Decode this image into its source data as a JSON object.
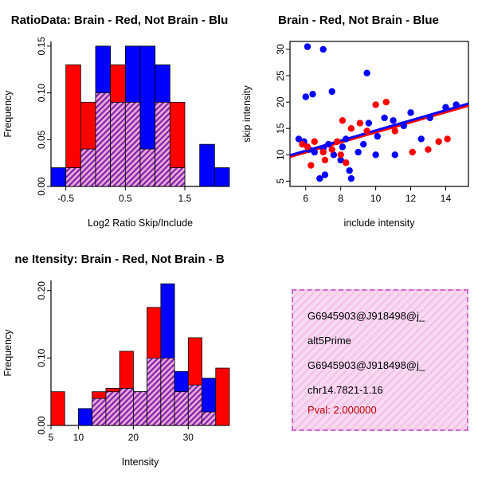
{
  "colors": {
    "red": "#ff0000",
    "blue": "#0000ff",
    "overlap_bg": "#e6a3dc",
    "overlap_line": "#7a1fa2",
    "info_bg": "#f8d9f1",
    "info_hatch": "#f2c0e8",
    "info_border": "#d06ac8",
    "pval": "#c00000"
  },
  "chart_data": [
    {
      "type": "bar",
      "title": "RatioData: Brain - Red, Not Brain - Blu",
      "xlabel": "Log2 Ratio Skip/Include",
      "ylabel": "Frequency",
      "xlim": [
        -0.75,
        2.25
      ],
      "ylim": [
        0,
        0.155
      ],
      "xticks": [
        -0.5,
        0.5,
        1.5
      ],
      "xtick_labels": [
        "-0.5",
        "0.5",
        "1.5"
      ],
      "yticks": [
        0,
        0.05,
        0.1,
        0.15
      ],
      "ytick_labels": [
        "0.00",
        "0.05",
        "0.10",
        "0.15"
      ],
      "bin_start": -0.75,
      "bin_width": 0.25,
      "series": [
        {
          "name": "red",
          "values": [
            0,
            0.13,
            0.09,
            0.1,
            0.13,
            0.09,
            0.04,
            0.09,
            0.09,
            0,
            0,
            0
          ]
        },
        {
          "name": "blue",
          "values": [
            0.02,
            0.02,
            0.04,
            0.15,
            0.09,
            0.15,
            0.15,
            0.13,
            0.02,
            0,
            0.045,
            0.02
          ]
        }
      ]
    },
    {
      "type": "scatter",
      "title": "Brain - Red, Not Brain - Blue",
      "xlabel": "include intensity",
      "ylabel": "skip intensity",
      "xlim": [
        5.1,
        15.3
      ],
      "ylim": [
        4,
        31.5
      ],
      "xticks": [
        6,
        8,
        10,
        12,
        14
      ],
      "xtick_labels": [
        "6",
        "8",
        "10",
        "12",
        "14"
      ],
      "yticks": [
        5,
        10,
        15,
        20,
        25,
        30
      ],
      "ytick_labels": [
        "5",
        "10",
        "15",
        "20",
        "25",
        "30"
      ],
      "series": [
        {
          "name": "blue",
          "points": [
            [
              5.6,
              13
            ],
            [
              5.9,
              12.5
            ],
            [
              6.0,
              21
            ],
            [
              6.4,
              21.5
            ],
            [
              6.1,
              30.5
            ],
            [
              7.0,
              30
            ],
            [
              6.2,
              11
            ],
            [
              6.5,
              10.5
            ],
            [
              6.8,
              5.5
            ],
            [
              7.0,
              11.2
            ],
            [
              7.1,
              6.2
            ],
            [
              7.3,
              12
            ],
            [
              7.5,
              22
            ],
            [
              7.6,
              10
            ],
            [
              8.0,
              9
            ],
            [
              8.1,
              11.5
            ],
            [
              8.3,
              13
            ],
            [
              8.5,
              7
            ],
            [
              8.6,
              5.5
            ],
            [
              9.0,
              10.5
            ],
            [
              9.3,
              12
            ],
            [
              9.5,
              25.5
            ],
            [
              9.6,
              16
            ],
            [
              10.0,
              10
            ],
            [
              10.1,
              13.5
            ],
            [
              10.5,
              17
            ],
            [
              11.0,
              16.5
            ],
            [
              11.1,
              10
            ],
            [
              11.6,
              15.5
            ],
            [
              12.0,
              18
            ],
            [
              12.6,
              13
            ],
            [
              13.1,
              17
            ],
            [
              14.0,
              19
            ],
            [
              14.6,
              19.5
            ]
          ]
        },
        {
          "name": "red",
          "points": [
            [
              5.8,
              12
            ],
            [
              6.1,
              11.5
            ],
            [
              6.5,
              12.5
            ],
            [
              6.3,
              8
            ],
            [
              7.0,
              10.5
            ],
            [
              7.1,
              9
            ],
            [
              7.5,
              11
            ],
            [
              7.8,
              12.5
            ],
            [
              8.0,
              10
            ],
            [
              8.1,
              16.5
            ],
            [
              8.3,
              8.5
            ],
            [
              8.6,
              15
            ],
            [
              9.1,
              16
            ],
            [
              9.5,
              14.5
            ],
            [
              10.0,
              19.5
            ],
            [
              10.6,
              20
            ],
            [
              11.1,
              14.5
            ],
            [
              12.1,
              10.5
            ],
            [
              13.0,
              11
            ],
            [
              13.6,
              12.5
            ],
            [
              14.1,
              13
            ]
          ]
        }
      ],
      "fit_lines": [
        {
          "name": "red",
          "x": [
            5.1,
            15.3
          ],
          "y": [
            9.6,
            19.3
          ]
        },
        {
          "name": "blue",
          "x": [
            5.1,
            15.3
          ],
          "y": [
            9.9,
            19.7
          ]
        }
      ]
    },
    {
      "type": "bar",
      "title": "ne Itensity: Brain - Red, Not Brain - B",
      "xlabel": "Intensity",
      "ylabel": "Frequency",
      "xlim": [
        5,
        37.5
      ],
      "ylim": [
        0,
        0.215
      ],
      "xticks": [
        5,
        10,
        20,
        30
      ],
      "xtick_labels": [
        "5",
        "10",
        "20",
        "30"
      ],
      "yticks": [
        0,
        0.1,
        0.2
      ],
      "ytick_labels": [
        "0.00",
        "0.10",
        "0.20"
      ],
      "bin_start": 5,
      "bin_width": 2.5,
      "series": [
        {
          "name": "red",
          "values": [
            0.05,
            0,
            0,
            0.05,
            0.055,
            0.11,
            0.05,
            0.175,
            0.1,
            0.05,
            0.13,
            0.02,
            0.085
          ]
        },
        {
          "name": "blue",
          "values": [
            0,
            0,
            0.025,
            0.04,
            0.05,
            0.055,
            0.05,
            0.1,
            0.21,
            0.08,
            0.06,
            0.07,
            0
          ]
        }
      ]
    }
  ],
  "info_box": {
    "lines": [
      {
        "text": "G6945903@J918498@j_"
      },
      {
        "text": "alt5Prime"
      },
      {
        "text": "G6945903@J918498@j_"
      },
      {
        "text": "chr14.7821-1.16"
      },
      {
        "text": "Pval: 2.000000"
      }
    ]
  }
}
